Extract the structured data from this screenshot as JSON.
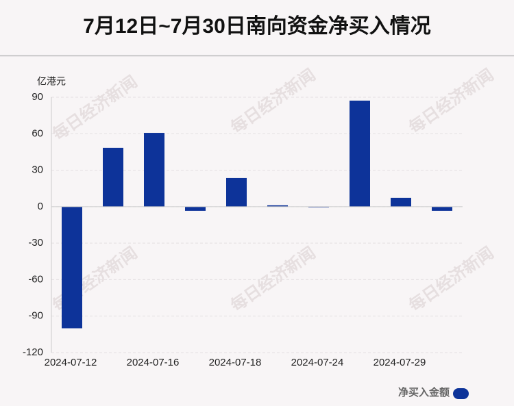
{
  "chart_data": {
    "type": "bar",
    "title": "7月12日~7月30日南向资金净买入情况",
    "y_unit": "亿港元",
    "watermark": "每日经济新闻",
    "categories": [
      "2024-07-12",
      null,
      "2024-07-16",
      null,
      "2024-07-18",
      null,
      "2024-07-24",
      null,
      "2024-07-29",
      null
    ],
    "series": [
      {
        "name": "净买入金额",
        "color": "#0d3399",
        "values": [
          -100,
          48.4,
          60.7,
          -3.4,
          23.6,
          1.1,
          -0.6,
          87.2,
          7.3,
          -3.4
        ]
      }
    ],
    "ylim": [
      -120,
      90
    ],
    "yticks": [
      -120,
      -90,
      -60,
      -30,
      0,
      30,
      60,
      90
    ],
    "grid": true,
    "legend": "bottom-right"
  }
}
